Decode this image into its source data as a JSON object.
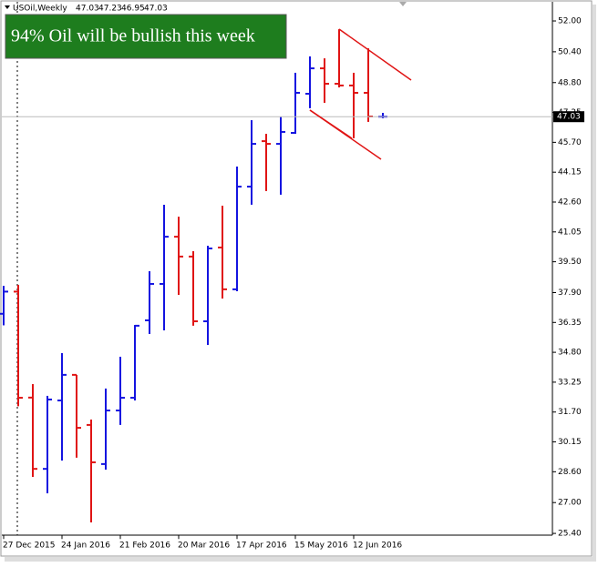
{
  "chart_data": {
    "type": "ohlc",
    "title": "USOil,Weekly",
    "annotation": "94% Oil will be bullish this week",
    "categories": [
      "27 Dec 2015",
      null,
      null,
      null,
      "24 Jan 2016",
      null,
      null,
      null,
      "21 Feb 2016",
      null,
      null,
      null,
      "20 Mar 2016",
      null,
      null,
      null,
      "17 Apr 2016",
      null,
      null,
      null,
      "15 May 2016",
      null,
      null,
      null,
      "12 Jun 2016",
      null,
      null
    ],
    "open": [
      36.8,
      37.95,
      32.45,
      28.75,
      32.3,
      33.63,
      31.03,
      29.0,
      31.78,
      32.44,
      36.46,
      38.35,
      40.8,
      39.77,
      36.41,
      40.24,
      38.07,
      43.4,
      45.76,
      45.62,
      46.19,
      48.22,
      49.54,
      48.74,
      48.65,
      48.27,
      47.03
    ],
    "high": [
      38.25,
      38.3,
      33.15,
      32.54,
      34.76,
      33.63,
      31.31,
      32.92,
      34.57,
      36.22,
      39.01,
      42.46,
      41.84,
      40.05,
      40.33,
      42.41,
      44.44,
      46.85,
      46.14,
      47.04,
      49.31,
      50.16,
      50.06,
      51.57,
      49.31,
      50.58,
      47.23
    ],
    "low": [
      36.2,
      32.0,
      28.33,
      27.48,
      29.18,
      29.33,
      25.97,
      28.71,
      31.03,
      32.3,
      35.75,
      35.94,
      37.78,
      36.18,
      35.18,
      37.59,
      37.97,
      42.46,
      43.17,
      42.98,
      46.14,
      47.47,
      47.75,
      48.55,
      45.91,
      46.76,
      46.95
    ],
    "close": [
      37.95,
      32.44,
      28.75,
      32.35,
      33.63,
      30.88,
      29.09,
      31.78,
      32.44,
      36.18,
      38.35,
      40.8,
      39.77,
      36.41,
      40.19,
      38.07,
      43.4,
      45.62,
      45.62,
      46.24,
      48.27,
      49.54,
      48.74,
      48.65,
      48.27,
      47.04,
      47.03
    ],
    "up_color": "#1414e0",
    "down_color": "#e01414",
    "ylim": [
      25.3,
      52.7
    ],
    "yticks": [
      {
        "value": 52,
        "label": "52.00"
      },
      {
        "value": 50.4,
        "label": "50.40"
      },
      {
        "value": 48.8,
        "label": "48.80"
      },
      {
        "value": 47.25,
        "label": "47.25"
      },
      {
        "value": 45.7,
        "label": "45.70"
      },
      {
        "value": 44.15,
        "label": "44.15"
      },
      {
        "value": 42.6,
        "label": "42.60"
      },
      {
        "value": 41.05,
        "label": "41.05"
      },
      {
        "value": 39.5,
        "label": "39.50"
      },
      {
        "value": 37.9,
        "label": "37.90"
      },
      {
        "value": 36.35,
        "label": "36.35"
      },
      {
        "value": 34.8,
        "label": "34.80"
      },
      {
        "value": 33.25,
        "label": "33.25"
      },
      {
        "value": 31.7,
        "label": "31.70"
      },
      {
        "value": 30.15,
        "label": "30.15"
      },
      {
        "value": 28.6,
        "label": "28.60"
      },
      {
        "value": 27,
        "label": "27.00"
      },
      {
        "value": 25.4,
        "label": "25.40"
      }
    ]
  }
}
